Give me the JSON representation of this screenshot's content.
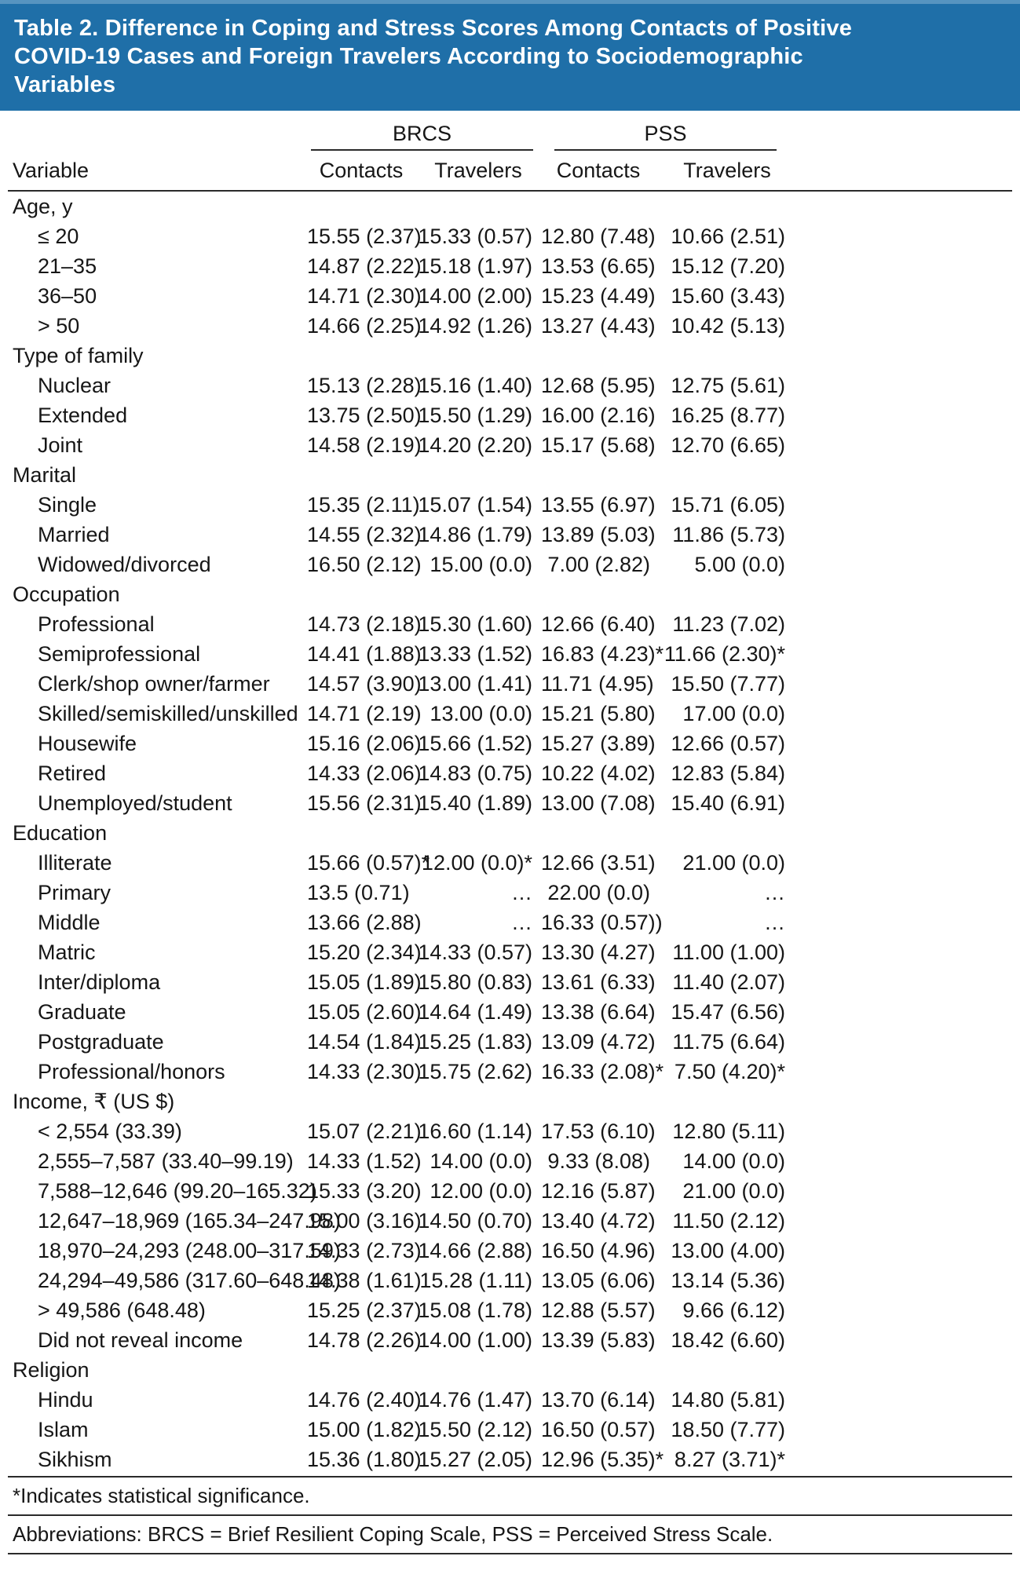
{
  "title": "Table 2. Difference in Coping and Stress Scores Among Contacts of Positive COVID-19 Cases and Foreign Travelers According to Sociodemographic Variables",
  "title_lines": [
    "Table 2. Difference in Coping and Stress Scores Among Contacts of Positive",
    "COVID-19 Cases and Foreign Travelers According to Sociodemographic",
    "Variables"
  ],
  "colors": {
    "title_bg": "#1f6fa8",
    "title_text": "#ffffff",
    "body_text": "#161616",
    "rule": "#2a2a2a"
  },
  "header": {
    "variable_label": "Variable",
    "groups": [
      {
        "label": "BRCS",
        "cols": [
          "Contacts",
          "Travelers"
        ]
      },
      {
        "label": "PSS",
        "cols": [
          "Contacts",
          "Travelers"
        ]
      }
    ]
  },
  "sections": [
    {
      "label": "Age, y",
      "rows": [
        {
          "label": "≤ 20",
          "values": [
            "15.55 (2.37)",
            "15.33 (0.57)",
            "12.80 (7.48)",
            "10.66 (2.51)"
          ]
        },
        {
          "label": "21–35",
          "values": [
            "14.87 (2.22)",
            "15.18 (1.97)",
            "13.53 (6.65)",
            "15.12 (7.20)"
          ]
        },
        {
          "label": "36–50",
          "values": [
            "14.71 (2.30)",
            "14.00 (2.00)",
            "15.23 (4.49)",
            "15.60 (3.43)"
          ]
        },
        {
          "label": "> 50",
          "values": [
            "14.66 (2.25)",
            "14.92 (1.26)",
            "13.27 (4.43)",
            "10.42 (5.13)"
          ]
        }
      ]
    },
    {
      "label": "Type of family",
      "rows": [
        {
          "label": "Nuclear",
          "values": [
            "15.13 (2.28)",
            "15.16 (1.40)",
            "12.68 (5.95)",
            "12.75 (5.61)"
          ]
        },
        {
          "label": "Extended",
          "values": [
            "13.75 (2.50)",
            "15.50 (1.29)",
            "16.00 (2.16)",
            "16.25 (8.77)"
          ]
        },
        {
          "label": "Joint",
          "values": [
            "14.58 (2.19)",
            "14.20 (2.20)",
            "15.17 (5.68)",
            "12.70 (6.65)"
          ]
        }
      ]
    },
    {
      "label": "Marital",
      "rows": [
        {
          "label": "Single",
          "values": [
            "15.35 (2.11)",
            "15.07 (1.54)",
            "13.55 (6.97)",
            "15.71 (6.05)"
          ]
        },
        {
          "label": "Married",
          "values": [
            "14.55 (2.32)",
            "14.86 (1.79)",
            "13.89 (5.03)",
            "11.86 (5.73)"
          ]
        },
        {
          "label": "Widowed/divorced",
          "values": [
            "16.50 (2.12)",
            "15.00 (0.0)",
            "7.00 (2.82)",
            "5.00 (0.0)"
          ]
        }
      ]
    },
    {
      "label": "Occupation",
      "rows": [
        {
          "label": "Professional",
          "values": [
            "14.73 (2.18)",
            "15.30 (1.60)",
            "12.66 (6.40)",
            "11.23 (7.02)"
          ]
        },
        {
          "label": "Semiprofessional",
          "values": [
            "14.41 (1.88)",
            "13.33 (1.52)",
            "16.83 (4.23)*",
            "11.66 (2.30)*"
          ]
        },
        {
          "label": "Clerk/shop owner/farmer",
          "values": [
            "14.57 (3.90)",
            "13.00 (1.41)",
            "11.71 (4.95)",
            "15.50 (7.77)"
          ]
        },
        {
          "label": "Skilled/semiskilled/unskilled",
          "values": [
            "14.71 (2.19)",
            "13.00 (0.0)",
            "15.21 (5.80)",
            "17.00 (0.0)"
          ]
        },
        {
          "label": "Housewife",
          "values": [
            "15.16 (2.06)",
            "15.66 (1.52)",
            "15.27 (3.89)",
            "12.66 (0.57)"
          ]
        },
        {
          "label": "Retired",
          "values": [
            "14.33 (2.06)",
            "14.83 (0.75)",
            "10.22 (4.02)",
            "12.83 (5.84)"
          ]
        },
        {
          "label": "Unemployed/student",
          "values": [
            "15.56 (2.31)",
            "15.40 (1.89)",
            "13.00 (7.08)",
            "15.40 (6.91)"
          ]
        }
      ]
    },
    {
      "label": "Education",
      "rows": [
        {
          "label": "Illiterate",
          "values": [
            "15.66 (0.57)*",
            "12.00 (0.0)*",
            "12.66 (3.51)",
            "21.00 (0.0)"
          ]
        },
        {
          "label": "Primary",
          "values": [
            "13.5 (0.71)",
            "…",
            "22.00 (0.0)",
            "…"
          ]
        },
        {
          "label": "Middle",
          "values": [
            "13.66 (2.88)",
            "…",
            "16.33 (0.57))",
            "…"
          ]
        },
        {
          "label": "Matric",
          "values": [
            "15.20 (2.34)",
            "14.33 (0.57)",
            "13.30 (4.27)",
            "11.00 (1.00)"
          ]
        },
        {
          "label": "Inter/diploma",
          "values": [
            "15.05 (1.89)",
            "15.80 (0.83)",
            "13.61 (6.33)",
            "11.40 (2.07)"
          ]
        },
        {
          "label": "Graduate",
          "values": [
            "15.05 (2.60)",
            "14.64 (1.49)",
            "13.38 (6.64)",
            "15.47 (6.56)"
          ]
        },
        {
          "label": "Postgraduate",
          "values": [
            "14.54 (1.84)",
            "15.25 (1.83)",
            "13.09 (4.72)",
            "11.75 (6.64)"
          ]
        },
        {
          "label": "Professional/honors",
          "values": [
            "14.33 (2.30)",
            "15.75 (2.62)",
            "16.33 (2.08)*",
            "7.50 (4.20)*"
          ]
        }
      ]
    },
    {
      "label": "Income, ₹ (US $)",
      "rows": [
        {
          "label": "< 2,554 (33.39)",
          "values": [
            "15.07 (2.21)",
            "16.60 (1.14)",
            "17.53 (6.10)",
            "12.80 (5.11)"
          ]
        },
        {
          "label": "2,555–7,587 (33.40–99.19)",
          "values": [
            "14.33 (1.52)",
            "14.00 (0.0)",
            "9.33 (8.08)",
            "14.00 (0.0)"
          ]
        },
        {
          "label": "7,588–12,646 (99.20–165.32)",
          "values": [
            "15.33 (3.20)",
            "12.00 (0.0)",
            "12.16 (5.87)",
            "21.00 (0.0)"
          ]
        },
        {
          "label": "12,647–18,969 (165.34–247.98)",
          "values": [
            "15.00 (3.16)",
            "14.50 (0.70)",
            "13.40 (4.72)",
            "11.50 (2.12)"
          ]
        },
        {
          "label": "18,970–24,293 (248.00–317.59)",
          "values": [
            "14.33 (2.73)",
            "14.66 (2.88)",
            "16.50 (4.96)",
            "13.00 (4.00)"
          ]
        },
        {
          "label": "24,294–49,586 (317.60–648.48)",
          "values": [
            "14.38 (1.61)",
            "15.28 (1.11)",
            "13.05 (6.06)",
            "13.14 (5.36)"
          ]
        },
        {
          "label": "> 49,586 (648.48)",
          "values": [
            "15.25 (2.37)",
            "15.08 (1.78)",
            "12.88 (5.57)",
            "9.66 (6.12)"
          ]
        },
        {
          "label": "Did not reveal income",
          "values": [
            "14.78 (2.26)",
            "14.00 (1.00)",
            "13.39 (5.83)",
            "18.42 (6.60)"
          ]
        }
      ]
    },
    {
      "label": "Religion",
      "rows": [
        {
          "label": "Hindu",
          "values": [
            "14.76 (2.40)",
            "14.76 (1.47)",
            "13.70 (6.14)",
            "14.80 (5.81)"
          ]
        },
        {
          "label": "Islam",
          "values": [
            "15.00 (1.82)",
            "15.50 (2.12)",
            "16.50 (0.57)",
            "18.50 (7.77)"
          ]
        },
        {
          "label": "Sikhism",
          "values": [
            "15.36 (1.80)",
            "15.27 (2.05)",
            "12.96 (5.35)*",
            "8.27 (3.71)*"
          ]
        }
      ]
    }
  ],
  "footnotes": [
    "*Indicates statistical significance.",
    "Abbreviations: BRCS = Brief Resilient Coping Scale, PSS = Perceived Stress Scale."
  ]
}
